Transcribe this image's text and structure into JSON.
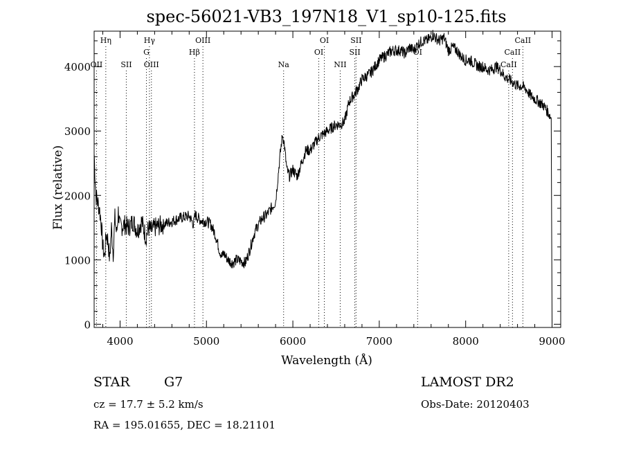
{
  "chart_data": {
    "type": "line",
    "title": "spec-56021-VB3_197N18_V1_sp10-125.fits",
    "xlabel": "Wavelength (Å)",
    "ylabel": "Flux (relative)",
    "xlim": [
      3700,
      9100
    ],
    "ylim": [
      -50,
      4550
    ],
    "xticks": [
      4000,
      5000,
      6000,
      7000,
      8000,
      9000
    ],
    "yticks": [
      0,
      1000,
      2000,
      3000,
      4000
    ],
    "grid": false,
    "series": [
      {
        "x": [
          3700,
          3720,
          3740,
          3760,
          3780,
          3800,
          3820,
          3840,
          3860,
          3880,
          3900,
          3920,
          3940,
          3960,
          3980,
          4000,
          4050,
          4100,
          4150,
          4200,
          4250,
          4300,
          4330,
          4360,
          4400,
          4500,
          4600,
          4700,
          4800,
          4850,
          4870,
          4900,
          4950,
          5000,
          5050,
          5100,
          5150,
          5180,
          5200,
          5250,
          5300,
          5350,
          5400,
          5450,
          5500,
          5550,
          5600,
          5650,
          5700,
          5750,
          5800,
          5850,
          5880,
          5900,
          5930,
          5960,
          6000,
          6050,
          6100,
          6150,
          6200,
          6250,
          6300,
          6350,
          6400,
          6450,
          6500,
          6550,
          6600,
          6650,
          6700,
          6750,
          6800,
          6850,
          6900,
          6950,
          7000,
          7050,
          7100,
          7150,
          7200,
          7250,
          7300,
          7350,
          7400,
          7450,
          7500,
          7550,
          7600,
          7620,
          7650,
          7700,
          7750,
          7800,
          7850,
          7900,
          7950,
          8000,
          8050,
          8100,
          8150,
          8200,
          8250,
          8300,
          8350,
          8400,
          8450,
          8500,
          8550,
          8600,
          8650,
          8700,
          8750,
          8800,
          8850,
          8900,
          8950,
          8990,
          9000
        ],
        "y": [
          2650,
          2000,
          1900,
          1800,
          1600,
          1200,
          1050,
          1400,
          1300,
          1000,
          1500,
          1100,
          1650,
          1400,
          1750,
          1500,
          1550,
          1500,
          1600,
          1450,
          1600,
          1350,
          1500,
          1450,
          1500,
          1550,
          1600,
          1650,
          1680,
          1550,
          1700,
          1650,
          1600,
          1600,
          1550,
          1400,
          1150,
          1050,
          1100,
          1000,
          950,
          1000,
          980,
          950,
          1150,
          1400,
          1550,
          1650,
          1700,
          1800,
          1900,
          2600,
          2950,
          2800,
          2400,
          2300,
          2400,
          2300,
          2500,
          2700,
          2700,
          2800,
          2900,
          2950,
          3000,
          3050,
          3100,
          3100,
          3150,
          3450,
          3550,
          3650,
          3800,
          3850,
          3900,
          4000,
          4100,
          4150,
          4200,
          4250,
          4250,
          4250,
          4200,
          4300,
          4250,
          4350,
          4400,
          4400,
          4450,
          4500,
          4450,
          4400,
          4450,
          4250,
          4300,
          4250,
          4150,
          4100,
          4100,
          4050,
          4000,
          4000,
          3950,
          3950,
          4000,
          3950,
          3850,
          3800,
          3750,
          3700,
          3700,
          3650,
          3550,
          3500,
          3450,
          3400,
          3300,
          3200,
          50
        ]
      }
    ],
    "lines": [
      {
        "label": "Hη",
        "x": 3835,
        "tier": 1
      },
      {
        "label": "OII",
        "x": 3727,
        "tier": 3
      },
      {
        "label": "SII",
        "x": 4072,
        "tier": 3
      },
      {
        "label": "Hγ",
        "x": 4340,
        "tier": 1
      },
      {
        "label": "G",
        "x": 4305,
        "tier": 2
      },
      {
        "label": "OIII",
        "x": 4363,
        "tier": 3
      },
      {
        "label": "OIII",
        "x": 4959,
        "tier": 1
      },
      {
        "label": "Hβ",
        "x": 4861,
        "tier": 2
      },
      {
        "label": "Na",
        "x": 5893,
        "tier": 3
      },
      {
        "label": "OI",
        "x": 6364,
        "tier": 1
      },
      {
        "label": "OI",
        "x": 6300,
        "tier": 2
      },
      {
        "label": "NII",
        "x": 6548,
        "tier": 3
      },
      {
        "label": "SII",
        "x": 6731,
        "tier": 1
      },
      {
        "label": "SII",
        "x": 6717,
        "tier": 2
      },
      {
        "label": "OI",
        "x": 7444,
        "tier": 2
      },
      {
        "label": "CaII",
        "x": 8662,
        "tier": 1
      },
      {
        "label": "CaII",
        "x": 8542,
        "tier": 2
      },
      {
        "label": "CaII",
        "x": 8498,
        "tier": 3
      }
    ]
  },
  "info": {
    "object": "STAR",
    "subclass": "G7",
    "cz": "cz = 17.7 ± 5.2 km/s",
    "coords": "RA = 195.01655, DEC =  18.21101",
    "survey": "LAMOST DR2",
    "obs_date": "Obs-Date: 20120403"
  }
}
